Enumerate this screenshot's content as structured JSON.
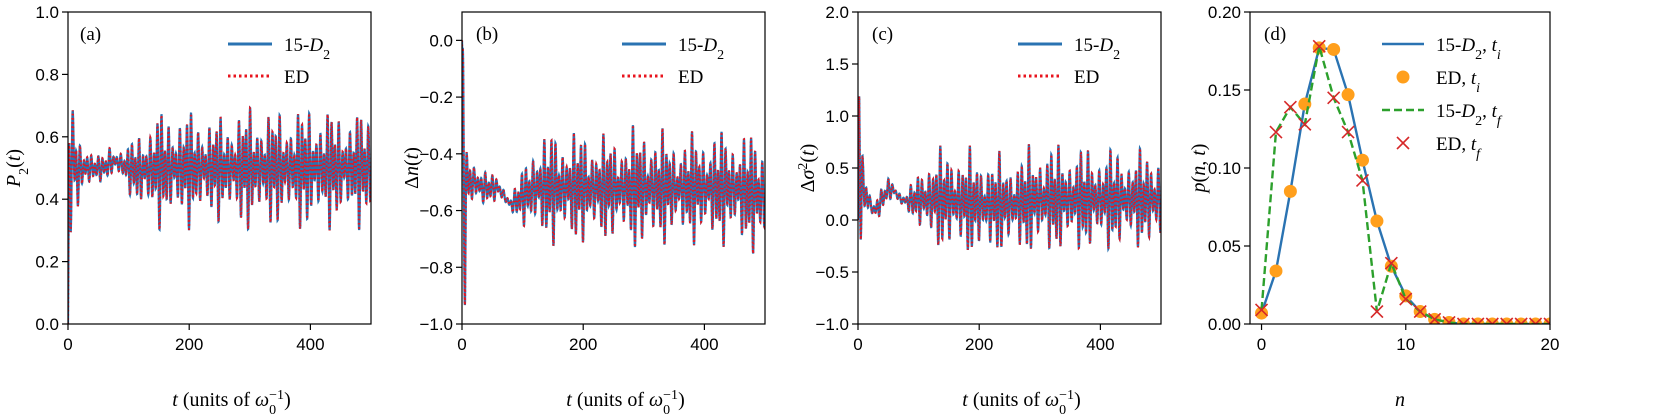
{
  "chart_data": [
    {
      "type": "line",
      "panel_label": "(a)",
      "xlabel": "t (units of ω0−1)",
      "ylabel": "P2(t)",
      "xlim": [
        0,
        500
      ],
      "ylim": [
        0.0,
        1.0
      ],
      "xticks": [
        "0",
        "200",
        "400"
      ],
      "yticks": [
        "0.0",
        "0.2",
        "0.4",
        "0.6",
        "0.8",
        "1.0"
      ],
      "legend_position": "top-right",
      "legend": [
        "15-D2",
        "ED"
      ],
      "series": [
        {
          "name": "15-D2",
          "style": "solid",
          "color": "#2a73b2"
        },
        {
          "name": "ED",
          "style": "dotted",
          "color": "#e8141e"
        }
      ],
      "signal": {
        "x": [
          0,
          2,
          5,
          8,
          12,
          16,
          20,
          25,
          30,
          40,
          50,
          60,
          70,
          80,
          100,
          120,
          150,
          200,
          250,
          300,
          350,
          400,
          450,
          500
        ],
        "center": [
          0.0,
          0.4,
          0.58,
          0.55,
          0.5,
          0.48,
          0.5,
          0.5,
          0.5,
          0.5,
          0.5,
          0.5,
          0.52,
          0.52,
          0.5,
          0.49,
          0.5,
          0.5,
          0.5,
          0.5,
          0.5,
          0.5,
          0.5,
          0.5
        ],
        "amplitude": [
          0.0,
          0.3,
          0.3,
          0.2,
          0.15,
          0.14,
          0.08,
          0.08,
          0.1,
          0.08,
          0.05,
          0.04,
          0.06,
          0.05,
          0.08,
          0.15,
          0.2,
          0.2,
          0.18,
          0.22,
          0.2,
          0.22,
          0.2,
          0.2
        ]
      }
    },
    {
      "type": "line",
      "panel_label": "(b)",
      "xlabel": "t (units of ω0−1)",
      "ylabel": "Δn(t)",
      "xlim": [
        0,
        500
      ],
      "ylim": [
        -1.0,
        0.1
      ],
      "xticks": [
        "0",
        "200",
        "400"
      ],
      "yticks": [
        "−1.0",
        "−0.8",
        "−0.6",
        "−0.4",
        "−0.2",
        "0.0"
      ],
      "legend_position": "top-right",
      "legend": [
        "15-D2",
        "ED"
      ],
      "series": [
        {
          "name": "15-D2",
          "style": "solid",
          "color": "#2a73b2"
        },
        {
          "name": "ED",
          "style": "dotted",
          "color": "#e8141e"
        }
      ],
      "signal": {
        "x": [
          0,
          2,
          5,
          8,
          12,
          16,
          20,
          25,
          30,
          40,
          50,
          60,
          70,
          80,
          100,
          120,
          150,
          200,
          250,
          300,
          350,
          400,
          450,
          500
        ],
        "center": [
          0.0,
          -0.45,
          -0.55,
          -0.5,
          -0.5,
          -0.5,
          -0.5,
          -0.5,
          -0.52,
          -0.52,
          -0.52,
          -0.52,
          -0.55,
          -0.58,
          -0.55,
          -0.52,
          -0.52,
          -0.52,
          -0.52,
          -0.52,
          -0.52,
          -0.52,
          -0.52,
          -0.55
        ],
        "amplitude": [
          0.0,
          0.45,
          0.4,
          0.15,
          0.12,
          0.1,
          0.08,
          0.09,
          0.1,
          0.08,
          0.05,
          0.04,
          0.03,
          0.04,
          0.1,
          0.2,
          0.22,
          0.22,
          0.2,
          0.25,
          0.2,
          0.22,
          0.22,
          0.24
        ]
      }
    },
    {
      "type": "line",
      "panel_label": "(c)",
      "xlabel": "t (units of ω0−1)",
      "ylabel": "Δσ2(t)",
      "xlim": [
        0,
        500
      ],
      "ylim": [
        -1.0,
        2.0
      ],
      "xticks": [
        "0",
        "200",
        "400"
      ],
      "yticks": [
        "−1.0",
        "−0.5",
        "0.0",
        "0.5",
        "1.0",
        "1.5",
        "2.0"
      ],
      "legend_position": "top-right",
      "legend": [
        "15-D2",
        "ED"
      ],
      "series": [
        {
          "name": "15-D2",
          "style": "solid",
          "color": "#2a73b2"
        },
        {
          "name": "ED",
          "style": "dotted",
          "color": "#e8141e"
        }
      ],
      "signal": {
        "x": [
          0,
          2,
          5,
          8,
          12,
          16,
          20,
          25,
          30,
          40,
          50,
          60,
          70,
          80,
          100,
          120,
          150,
          200,
          250,
          300,
          350,
          400,
          450,
          500
        ],
        "center": [
          0.0,
          0.5,
          0.6,
          0.3,
          0.2,
          0.25,
          0.15,
          0.1,
          0.1,
          0.2,
          0.3,
          0.28,
          0.2,
          0.18,
          0.2,
          0.2,
          0.2,
          0.15,
          0.15,
          0.2,
          0.2,
          0.2,
          0.2,
          0.2
        ],
        "amplitude": [
          0.0,
          1.0,
          0.9,
          0.5,
          0.4,
          0.3,
          0.12,
          0.12,
          0.15,
          0.12,
          0.12,
          0.1,
          0.08,
          0.08,
          0.3,
          0.5,
          0.55,
          0.55,
          0.5,
          0.6,
          0.55,
          0.55,
          0.5,
          0.55
        ]
      }
    },
    {
      "type": "line",
      "panel_label": "(d)",
      "xlabel": "n",
      "ylabel": "p(n,t)",
      "xlim": [
        -0.8,
        20
      ],
      "ylim": [
        0.0,
        0.2
      ],
      "xticks": [
        "0",
        "10",
        "20"
      ],
      "yticks": [
        "0.00",
        "0.05",
        "0.10",
        "0.15",
        "0.20"
      ],
      "legend_position": "top-right",
      "legend": [
        "15-D2, ti",
        "ED, ti",
        "15-D2, tf",
        "ED, tf"
      ],
      "x": [
        0,
        1,
        2,
        3,
        4,
        5,
        6,
        7,
        8,
        9,
        10,
        11,
        12,
        13,
        14,
        15,
        16,
        17,
        18,
        19,
        20
      ],
      "series": [
        {
          "name": "15-D2, ti",
          "style": "solid",
          "color": "#2a73b2",
          "values": [
            0.007,
            0.034,
            0.085,
            0.141,
            0.177,
            0.176,
            0.147,
            0.105,
            0.066,
            0.037,
            0.018,
            0.008,
            0.003,
            0.001,
            0.0,
            0.0,
            0.0,
            0.0,
            0.0,
            0.0,
            0.0
          ]
        },
        {
          "name": "ED, ti",
          "style": "circle",
          "color": "#ff9f1c",
          "values": [
            0.007,
            0.034,
            0.085,
            0.141,
            0.177,
            0.176,
            0.147,
            0.105,
            0.066,
            0.037,
            0.018,
            0.008,
            0.003,
            0.001,
            0.0,
            0.0,
            0.0,
            0.0,
            0.0,
            0.0,
            0.0
          ]
        },
        {
          "name": "15-D2, tf",
          "style": "dashed",
          "color": "#2ca02c",
          "values": [
            0.009,
            0.123,
            0.139,
            0.128,
            0.178,
            0.145,
            0.123,
            0.092,
            0.008,
            0.039,
            0.016,
            0.008,
            0.003,
            0.001,
            0.0,
            0.0,
            0.0,
            0.0,
            0.0,
            0.0,
            0.0
          ]
        },
        {
          "name": "ED, tf",
          "style": "x",
          "color": "#d62728",
          "values": [
            0.009,
            0.123,
            0.139,
            0.128,
            0.178,
            0.145,
            0.123,
            0.092,
            0.008,
            0.039,
            0.016,
            0.008,
            0.003,
            0.001,
            0.0,
            0.0,
            0.0,
            0.0,
            0.0,
            0.0,
            0.0
          ]
        }
      ]
    }
  ]
}
